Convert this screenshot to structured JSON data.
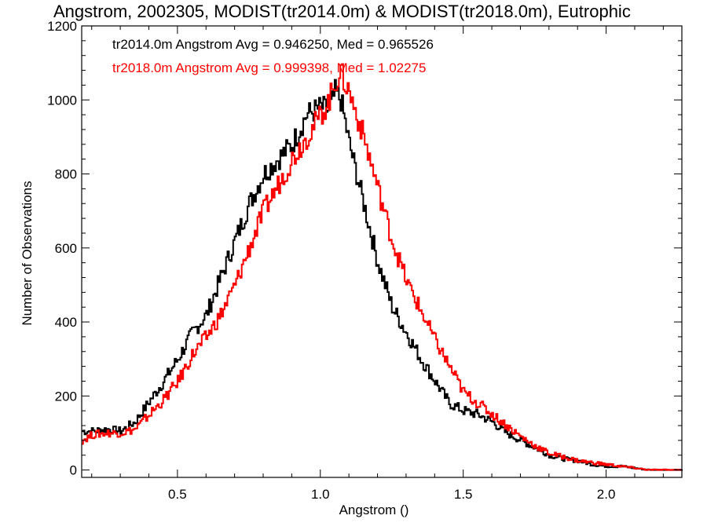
{
  "chart_data": {
    "type": "line",
    "title": "Angstrom, 2002305, MODIST(tr2014.0m) & MODIST(tr2018.0m), Eutrophic",
    "xlabel": "Angstrom ()",
    "ylabel": "Number of Observations",
    "xlim": [
      0.165,
      2.265
    ],
    "ylim": [
      -20,
      1200
    ],
    "xticks": [
      0.5,
      1.0,
      1.5,
      2.0
    ],
    "xtick_labels": [
      "0.5",
      "1.0",
      "1.5",
      "2.0"
    ],
    "yticks": [
      0,
      200,
      400,
      600,
      800,
      1000,
      1200
    ],
    "ytick_labels": [
      "0",
      "200",
      "400",
      "600",
      "800",
      "1000",
      "1200"
    ],
    "grid": false,
    "legend_position": "top-left",
    "annotations": [
      {
        "text": "tr2014.0m Angstrom Avg = 0.946250, Med = 0.965526",
        "color": "#000000"
      },
      {
        "text": "tr2018.0m Angstrom Avg = 0.999398, Med = 1.02275",
        "color": "#ff0000"
      }
    ],
    "series": [
      {
        "color": "#000000",
        "x": [
          0.165,
          0.2,
          0.25,
          0.3,
          0.35,
          0.4,
          0.45,
          0.5,
          0.55,
          0.6,
          0.65,
          0.7,
          0.75,
          0.8,
          0.85,
          0.9,
          0.95,
          1.0,
          1.03,
          1.05,
          1.07,
          1.1,
          1.15,
          1.2,
          1.25,
          1.3,
          1.35,
          1.4,
          1.45,
          1.5,
          1.55,
          1.6,
          1.65,
          1.7,
          1.75,
          1.8,
          1.85,
          1.9,
          1.95,
          2.0,
          2.05,
          2.1,
          2.15,
          2.2,
          2.265
        ],
        "y": [
          105,
          105,
          110,
          105,
          130,
          185,
          240,
          300,
          370,
          420,
          520,
          620,
          720,
          800,
          840,
          880,
          960,
          980,
          970,
          1020,
          1000,
          880,
          720,
          560,
          440,
          370,
          300,
          240,
          180,
          160,
          150,
          130,
          100,
          80,
          60,
          40,
          30,
          25,
          15,
          10,
          10,
          5,
          0,
          0,
          0
        ]
      },
      {
        "color": "#ff0000",
        "x": [
          0.165,
          0.2,
          0.25,
          0.3,
          0.35,
          0.4,
          0.45,
          0.5,
          0.55,
          0.6,
          0.65,
          0.7,
          0.75,
          0.8,
          0.85,
          0.9,
          0.95,
          1.0,
          1.03,
          1.05,
          1.07,
          1.1,
          1.15,
          1.2,
          1.25,
          1.3,
          1.35,
          1.4,
          1.45,
          1.5,
          1.55,
          1.6,
          1.65,
          1.7,
          1.75,
          1.8,
          1.85,
          1.9,
          1.95,
          2.0,
          2.05,
          2.1,
          2.15,
          2.2,
          2.265
        ],
        "y": [
          80,
          95,
          100,
          100,
          110,
          150,
          190,
          240,
          310,
          360,
          420,
          500,
          600,
          700,
          770,
          840,
          900,
          960,
          1000,
          1050,
          1070,
          1020,
          900,
          760,
          620,
          510,
          430,
          350,
          280,
          210,
          180,
          150,
          120,
          90,
          65,
          45,
          35,
          25,
          20,
          15,
          10,
          5,
          0,
          0,
          0
        ]
      }
    ]
  }
}
